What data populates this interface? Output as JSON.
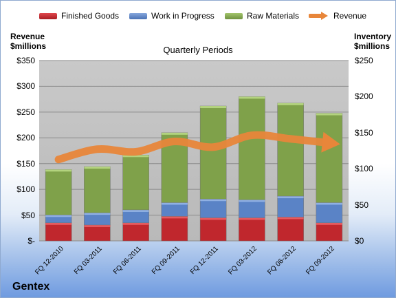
{
  "company": "Gentex",
  "chart_data": {
    "type": "bar",
    "stacked": true,
    "title": "Quarterly Periods",
    "categories": [
      "FQ 12-2010",
      "FQ 03-2011",
      "FQ 06-2011",
      "FQ 09-2011",
      "FQ 12-2011",
      "FQ 03-2012",
      "FQ 06-2012",
      "FQ 09-2012"
    ],
    "series": [
      {
        "name": "Finished Goods",
        "axis": "right",
        "color": "#c0272d",
        "values": [
          25,
          22,
          25,
          34,
          32,
          32,
          33,
          25
        ]
      },
      {
        "name": "Work in Progress",
        "axis": "right",
        "color": "#5a83c6",
        "values": [
          11,
          17,
          18,
          19,
          26,
          25,
          29,
          28
        ]
      },
      {
        "name": "Raw Materials",
        "axis": "right",
        "color": "#7fa14a",
        "values": [
          63,
          64,
          76,
          97,
          129,
          143,
          129,
          124
        ]
      },
      {
        "name": "Revenue",
        "type": "line",
        "axis": "left",
        "color": "#e8863a",
        "values": [
          158,
          178,
          173,
          193,
          182,
          205,
          198,
          190
        ]
      }
    ],
    "left_axis": {
      "label_line1": "Revenue",
      "label_line2": "$millions",
      "ylim": [
        0,
        350
      ],
      "ticks": [
        "$-",
        "$50",
        "$100",
        "$150",
        "$200",
        "$250",
        "$300",
        "$350"
      ]
    },
    "right_axis": {
      "label_line1": "Inventory",
      "label_line2": "$millions",
      "ylim": [
        0,
        250
      ],
      "ticks": [
        "$0",
        "$50",
        "$100",
        "$150",
        "$200",
        "$250"
      ]
    },
    "grid": true,
    "legend": "top"
  }
}
